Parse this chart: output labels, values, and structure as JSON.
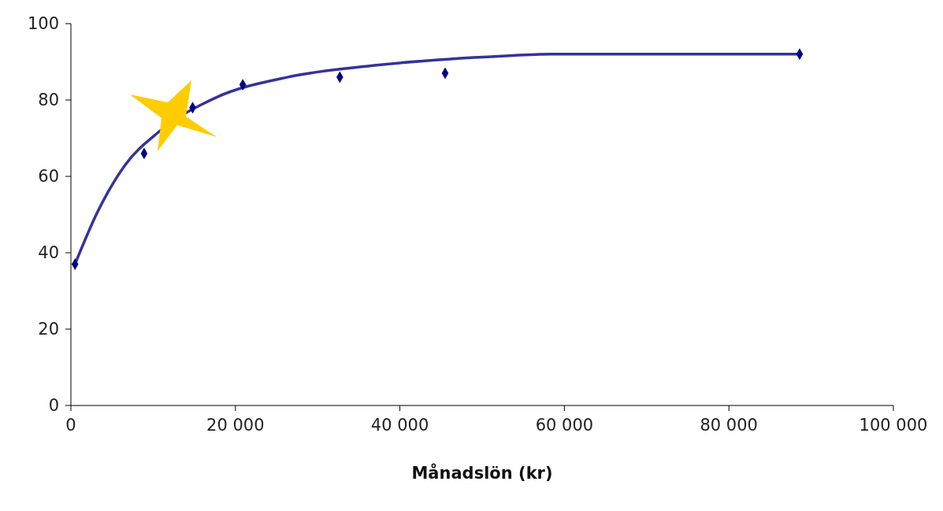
{
  "chart_data": {
    "type": "scatter",
    "xlabel": "Månadslön (kr)",
    "xlim": [
      0,
      100000
    ],
    "xticks": [
      0,
      {
        "value": 20000,
        "label": "20 000"
      },
      {
        "value": 40000,
        "label": "40 000"
      },
      {
        "value": 60000,
        "label": "60 000"
      },
      {
        "value": 80000,
        "label": "80 000"
      },
      {
        "value": 100000,
        "label": "100 000"
      }
    ],
    "ylim": [
      0,
      100
    ],
    "yticks": [
      0,
      20,
      40,
      60,
      80,
      100
    ],
    "grid": false,
    "legend": false,
    "series": [
      {
        "color": "#000080",
        "marker": "diamond",
        "x": [
          500,
          8900,
          14800,
          20900,
          32700,
          45500,
          88600
        ],
        "values": [
          37,
          66,
          78,
          84,
          86,
          87,
          92
        ]
      },
      {
        "type": "line",
        "color": "#333399",
        "marker": "none",
        "line_style": "solid",
        "x": [
          500,
          3200,
          6600,
          10600,
          17500,
          26400,
          36700,
          52400,
          58400,
          88500
        ],
        "values": [
          37,
          50.5,
          63,
          71.5,
          80.5,
          86,
          89,
          91.5,
          92,
          92
        ]
      }
    ]
  }
}
